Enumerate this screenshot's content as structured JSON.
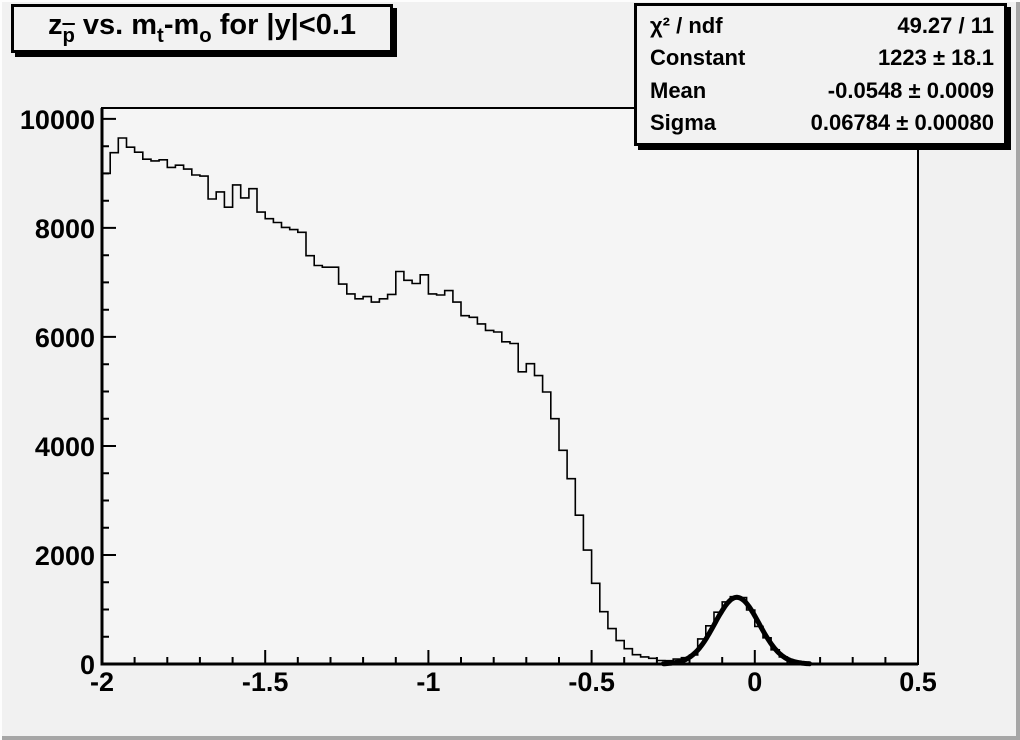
{
  "colors": {
    "canvas_bg": "#f1f1f1",
    "frame_fill": "#f5f5f5",
    "line": "#000000",
    "pave_bg": "#f2f2f2",
    "bevel_highlight": "#fdfdfd",
    "bevel_shadow": "#a6a6a6"
  },
  "title": {
    "plain": "z_p vs. m_t-m_o for |y|<0.1",
    "segments": [
      {
        "t": "z"
      },
      {
        "t": "p",
        "style": "sub ol"
      },
      {
        "t": " vs. m"
      },
      {
        "t": "t",
        "style": "sub"
      },
      {
        "t": "-m"
      },
      {
        "t": "o",
        "style": "sub"
      },
      {
        "t": " for |y|<0.1"
      }
    ]
  },
  "stats": {
    "rows": [
      {
        "label": "χ² / ndf",
        "value": "49.27 / 11"
      },
      {
        "label": "Constant",
        "value": "1223 ± 18.1"
      },
      {
        "label": "Mean",
        "value": "-0.0548 ± 0.0009"
      },
      {
        "label": "Sigma",
        "value": "0.06784 ± 0.00080"
      }
    ]
  },
  "chart_data": {
    "type": "bar",
    "subtype": "histogram-step-outline",
    "title": "z_p vs. m_t-m_o for |y|<0.1",
    "xlabel": "",
    "ylabel": "",
    "xlim": [
      -2,
      0.5
    ],
    "ylim": [
      0,
      10200
    ],
    "grid": false,
    "bin_start": -2,
    "bin_width": 0.025,
    "values": [
      9000,
      9380,
      9650,
      9480,
      9390,
      9260,
      9230,
      9250,
      9110,
      9150,
      9080,
      8970,
      8950,
      8530,
      8660,
      8380,
      8790,
      8550,
      8720,
      8290,
      8170,
      8100,
      8010,
      7970,
      7920,
      7490,
      7310,
      7280,
      7280,
      6970,
      6790,
      6700,
      6740,
      6640,
      6700,
      6780,
      7200,
      7040,
      6980,
      7140,
      6790,
      6770,
      6850,
      6640,
      6390,
      6360,
      6240,
      6120,
      6090,
      5910,
      5880,
      5360,
      5510,
      5290,
      4990,
      4500,
      3920,
      3400,
      2730,
      2090,
      1480,
      960,
      650,
      430,
      280,
      170,
      130,
      105,
      65,
      60,
      90,
      115,
      165,
      460,
      700,
      950,
      1140,
      1235,
      1220,
      990,
      690,
      480,
      260,
      130,
      55,
      20,
      8,
      3,
      0,
      0,
      0,
      0,
      0,
      0,
      0,
      0,
      0,
      0,
      0,
      0
    ],
    "x_ticks": [
      -2,
      -1.5,
      -1,
      -0.5,
      0,
      0.5
    ],
    "x_tick_labels": [
      "-2",
      "-1.5",
      "-1",
      "-0.5",
      "0",
      "0.5"
    ],
    "x_minor_step": 0.1,
    "y_ticks": [
      0,
      2000,
      4000,
      6000,
      8000,
      10000
    ],
    "y_tick_labels": [
      "0",
      "2000",
      "4000",
      "6000",
      "8000",
      "10000"
    ],
    "y_minor_step": 500,
    "fit": {
      "type": "gaussian",
      "chi2": 49.27,
      "ndf": 11,
      "constant": 1223,
      "constant_err": 18.1,
      "mean": -0.0548,
      "mean_err": 0.0009,
      "sigma": 0.06784,
      "sigma_err": 0.0008,
      "draw_range": [
        -0.28,
        0.17
      ],
      "line_width": 5
    }
  }
}
